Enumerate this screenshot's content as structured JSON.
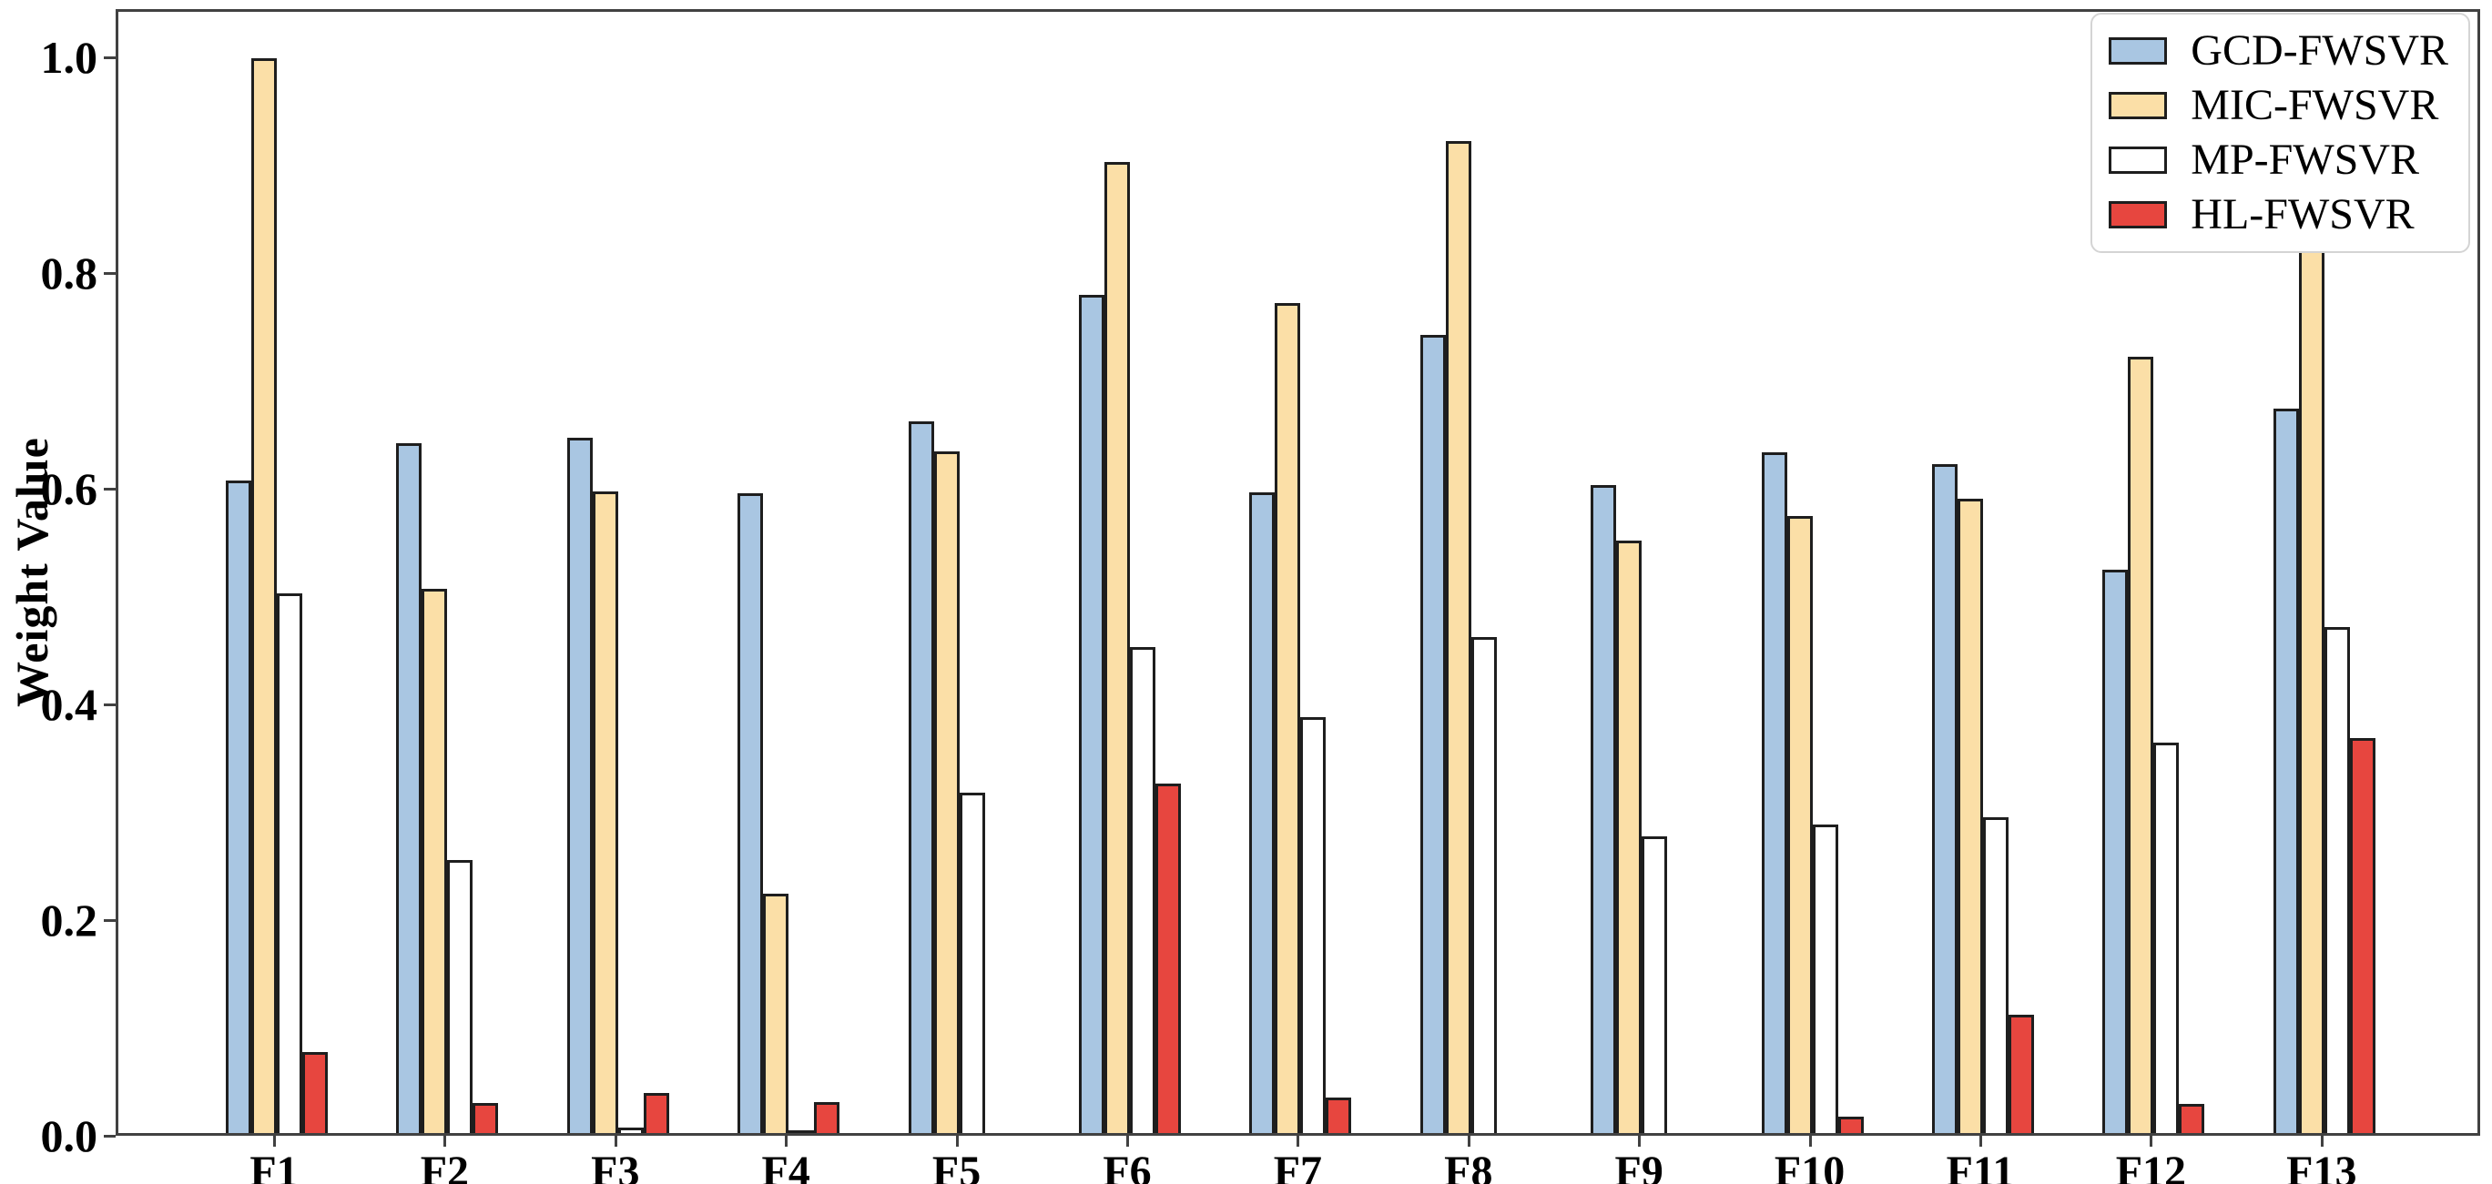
{
  "figure": {
    "background": "#ffffff",
    "frame_color": "#414141"
  },
  "chart_data": {
    "type": "bar",
    "title": "",
    "xlabel": "",
    "ylabel": "Weight Value",
    "categories": [
      "F1",
      "F2",
      "F3",
      "F4",
      "F5",
      "F6",
      "F7",
      "F8",
      "F9",
      "F10",
      "F11",
      "F12",
      "F13"
    ],
    "series": [
      {
        "name": "GCD-FWSVR",
        "color": "#a9c6e2",
        "values": [
          0.605,
          0.64,
          0.645,
          0.593,
          0.66,
          0.777,
          0.594,
          0.74,
          0.601,
          0.631,
          0.62,
          0.522,
          0.672
        ]
      },
      {
        "name": "MIC-FWSVR",
        "color": "#fbdfa7",
        "values": [
          0.997,
          0.505,
          0.595,
          0.222,
          0.632,
          0.9,
          0.77,
          0.92,
          0.549,
          0.572,
          0.588,
          0.72,
          0.857
        ]
      },
      {
        "name": "MP-FWSVR",
        "color": "#ffffff",
        "values": [
          0.5,
          0.253,
          0.005,
          0.002,
          0.316,
          0.451,
          0.386,
          0.46,
          0.275,
          0.286,
          0.293,
          0.362,
          0.469
        ]
      },
      {
        "name": "HL-FWSVR",
        "color": "#e7463f",
        "values": [
          0.075,
          0.028,
          0.037,
          0.029,
          0.0,
          0.324,
          0.033,
          0.0,
          0.0,
          0.015,
          0.11,
          0.027,
          0.366
        ]
      }
    ],
    "y_ticks": [
      "0.0",
      "0.2",
      "0.4",
      "0.6",
      "0.8",
      "1.0"
    ],
    "ylim": [
      0,
      1.045
    ],
    "grid": false,
    "legend_position": "upper right",
    "bar_edge_color": "#1e1e1e"
  }
}
